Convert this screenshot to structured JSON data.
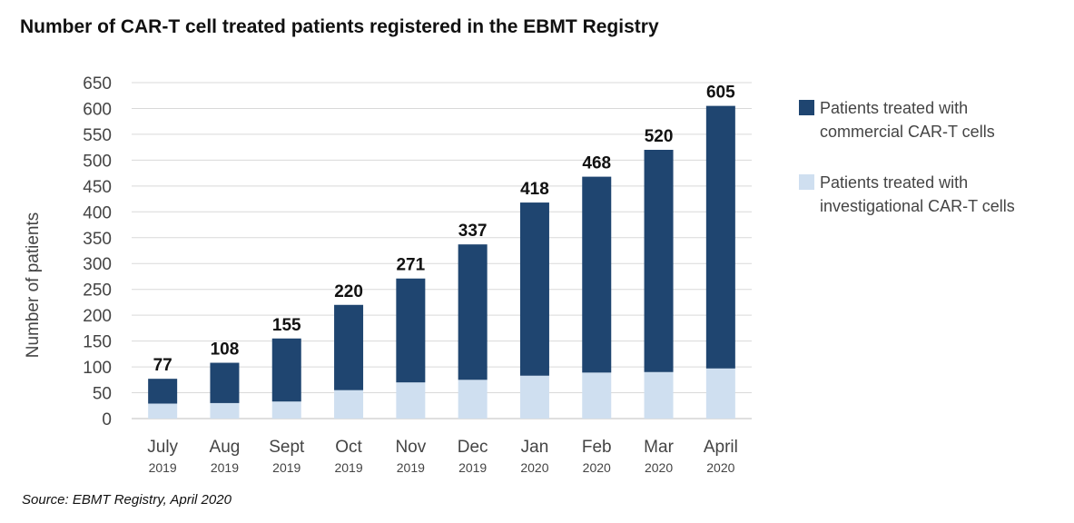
{
  "title": "Number of CAR-T cell treated patients registered in the EBMT Registry",
  "source": "Source: EBMT Registry, April 2020",
  "colors": {
    "commercial": "#1f4570",
    "investigational": "#cfdff0",
    "grid": "#d9d9d9"
  },
  "chart_data": {
    "type": "bar",
    "stacked": true,
    "title": "Number of CAR-T cell treated patients registered in the EBMT Registry",
    "ylabel": "Number of patients",
    "xlabel": "",
    "ylim": [
      0,
      650
    ],
    "yticks": [
      0,
      50,
      100,
      150,
      200,
      250,
      300,
      350,
      400,
      450,
      500,
      550,
      600,
      650
    ],
    "grid": true,
    "legend_position": "right",
    "categories": [
      {
        "month": "July",
        "year": "2019"
      },
      {
        "month": "Aug",
        "year": "2019"
      },
      {
        "month": "Sept",
        "year": "2019"
      },
      {
        "month": "Oct",
        "year": "2019"
      },
      {
        "month": "Nov",
        "year": "2019"
      },
      {
        "month": "Dec",
        "year": "2019"
      },
      {
        "month": "Jan",
        "year": "2020"
      },
      {
        "month": "Feb",
        "year": "2020"
      },
      {
        "month": "Mar",
        "year": "2020"
      },
      {
        "month": "April",
        "year": "2020"
      }
    ],
    "totals": [
      77,
      108,
      155,
      220,
      271,
      337,
      418,
      468,
      520,
      605
    ],
    "series": [
      {
        "name": "Patients treated with investigational CAR-T cells",
        "key": "investigational",
        "values": [
          29,
          30,
          33,
          55,
          70,
          75,
          83,
          89,
          90,
          97
        ]
      },
      {
        "name": "Patients treated with commercial CAR-T cells",
        "key": "commercial",
        "values": [
          48,
          78,
          122,
          165,
          201,
          262,
          335,
          379,
          430,
          508
        ]
      }
    ]
  },
  "legend": [
    {
      "label": "Patients treated with commercial CAR-T cells",
      "key": "commercial"
    },
    {
      "label": "Patients treated with investigational CAR-T cells",
      "key": "investigational"
    }
  ]
}
